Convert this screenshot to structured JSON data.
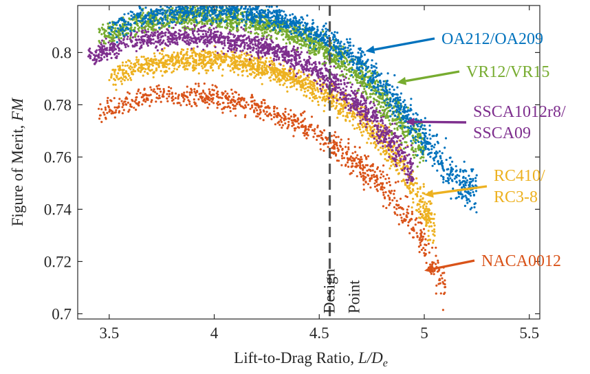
{
  "chart_data": {
    "type": "scatter",
    "title": "",
    "xlabel_prefix": "Lift-to-Drag Ratio, ",
    "xlabel_math": "L/D",
    "xlabel_sub": "e",
    "ylabel_prefix": "Figure of Merit, ",
    "ylabel_math": "FM",
    "xlim": [
      3.35,
      5.55
    ],
    "ylim": [
      0.698,
      0.818
    ],
    "xticks": [
      3.5,
      4,
      4.5,
      5,
      5.5
    ],
    "xtick_labels": [
      "3.5",
      "4",
      "4.5",
      "5",
      "5.5"
    ],
    "yticks": [
      0.7,
      0.72,
      0.74,
      0.76,
      0.78,
      0.8
    ],
    "ytick_labels": [
      "0.7",
      "0.72",
      "0.74",
      "0.76",
      "0.78",
      "0.8"
    ],
    "design_point": {
      "x": 4.55,
      "label_line1": "Design",
      "label_line2": "Point"
    },
    "series": [
      {
        "name": "NACA0012",
        "color": "#D95319",
        "x": [
          3.45,
          3.6,
          3.75,
          3.9,
          4.0,
          4.15,
          4.3,
          4.45,
          4.6,
          4.75,
          4.85,
          4.95,
          5.0,
          5.05,
          5.1
        ],
        "y": [
          0.7775,
          0.781,
          0.7835,
          0.784,
          0.783,
          0.7805,
          0.7765,
          0.7705,
          0.763,
          0.753,
          0.745,
          0.734,
          0.726,
          0.718,
          0.709
        ]
      },
      {
        "name": "RC410/RC3-8",
        "color": "#EDB120",
        "x": [
          3.5,
          3.65,
          3.8,
          3.95,
          4.1,
          4.25,
          4.4,
          4.55,
          4.7,
          4.8,
          4.9,
          4.95,
          5.0,
          5.05
        ],
        "y": [
          0.7905,
          0.7945,
          0.797,
          0.7975,
          0.7965,
          0.794,
          0.7895,
          0.7835,
          0.7745,
          0.7665,
          0.7565,
          0.7485,
          0.74,
          0.731
        ]
      },
      {
        "name": "SSCA1012r8/SSCA09",
        "color": "#7E2F8E",
        "x": [
          3.4,
          3.55,
          3.7,
          3.85,
          4.0,
          4.15,
          4.3,
          4.45,
          4.6,
          4.7,
          4.8,
          4.9,
          4.95
        ],
        "y": [
          0.7985,
          0.803,
          0.8055,
          0.8065,
          0.806,
          0.804,
          0.8005,
          0.795,
          0.7865,
          0.7795,
          0.7705,
          0.7605,
          0.755
        ]
      },
      {
        "name": "VR12/VR15",
        "color": "#77AC30",
        "x": [
          3.45,
          3.6,
          3.75,
          3.9,
          4.05,
          4.2,
          4.35,
          4.5,
          4.6,
          4.7,
          4.8,
          4.9,
          5.0
        ],
        "y": [
          0.806,
          0.8105,
          0.813,
          0.814,
          0.8135,
          0.8115,
          0.808,
          0.8025,
          0.7975,
          0.791,
          0.7825,
          0.773,
          0.763
        ]
      },
      {
        "name": "OA212/OA209",
        "color": "#0072BD",
        "x": [
          3.5,
          3.65,
          3.8,
          3.95,
          4.1,
          4.25,
          4.4,
          4.55,
          4.65,
          4.75,
          4.85,
          4.95,
          5.05,
          5.15,
          5.25
        ],
        "y": [
          0.8085,
          0.813,
          0.8155,
          0.8165,
          0.816,
          0.814,
          0.8105,
          0.8045,
          0.7995,
          0.792,
          0.783,
          0.7725,
          0.7615,
          0.751,
          0.746
        ]
      }
    ],
    "annotations": [
      {
        "label_lines": [
          "OA212/OA209"
        ],
        "color": "#0072BD",
        "arrow_to": [
          4.72,
          0.8005
        ]
      },
      {
        "label_lines": [
          "VR12/VR15"
        ],
        "color": "#77AC30",
        "arrow_to": [
          4.87,
          0.7885
        ]
      },
      {
        "label_lines": [
          "SSCA1012r8/",
          "SSCA09"
        ],
        "color": "#7E2F8E",
        "arrow_to": [
          4.91,
          0.7735
        ]
      },
      {
        "label_lines": [
          "RC410/",
          "RC3-8"
        ],
        "color": "#EDB120",
        "arrow_to": [
          5.0,
          0.7455
        ]
      },
      {
        "label_lines": [
          "NACA0012"
        ],
        "color": "#D95319",
        "arrow_to": [
          5.0,
          0.7165
        ]
      }
    ]
  }
}
